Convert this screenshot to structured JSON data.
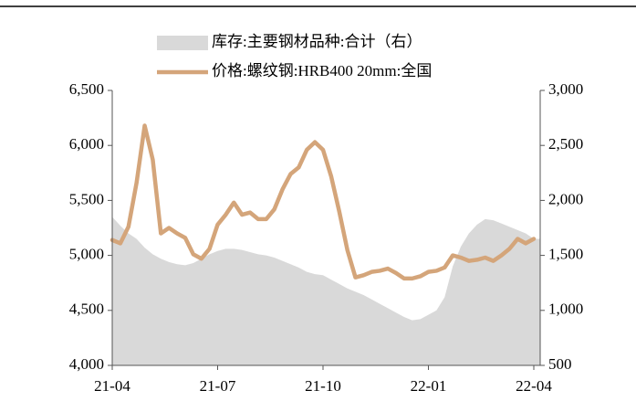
{
  "chart_data": {
    "type": "area_line",
    "categories": [
      "21-04",
      null,
      null,
      null,
      null,
      null,
      null,
      null,
      null,
      null,
      null,
      null,
      null,
      "21-07",
      null,
      null,
      null,
      null,
      null,
      null,
      null,
      null,
      null,
      null,
      null,
      null,
      "21-10",
      null,
      null,
      null,
      null,
      null,
      null,
      null,
      null,
      null,
      null,
      null,
      null,
      "22-01",
      null,
      null,
      null,
      null,
      null,
      null,
      null,
      null,
      null,
      null,
      null,
      null,
      "22-04"
    ],
    "series": [
      {
        "name": "库存:主要钢材品种:合计（右）",
        "color": "#d9d9d9",
        "kind": "area",
        "axis": "y2",
        "values": [
          1850,
          1770,
          1700,
          1650,
          1570,
          1510,
          1470,
          1440,
          1420,
          1410,
          1430,
          1470,
          1510,
          1540,
          1560,
          1560,
          1550,
          1530,
          1510,
          1500,
          1480,
          1450,
          1420,
          1390,
          1350,
          1330,
          1320,
          1280,
          1240,
          1200,
          1170,
          1140,
          1100,
          1060,
          1020,
          980,
          940,
          910,
          920,
          960,
          1000,
          1120,
          1400,
          1580,
          1700,
          1780,
          1830,
          1820,
          1790,
          1760,
          1730,
          1700,
          1650
        ]
      },
      {
        "name": "价格:螺纹钢:HRB400 20mm:全国",
        "color": "#d4a57a",
        "kind": "line",
        "values": [
          5140,
          5110,
          5260,
          5660,
          6180,
          5870,
          5200,
          5250,
          5200,
          5160,
          5010,
          4970,
          5060,
          5280,
          5370,
          5480,
          5370,
          5390,
          5330,
          5330,
          5420,
          5600,
          5740,
          5800,
          5960,
          6030,
          5960,
          5720,
          5400,
          5050,
          4800,
          4820,
          4850,
          4860,
          4880,
          4840,
          4790,
          4790,
          4810,
          4850,
          4860,
          4890,
          5000,
          4980,
          4950,
          4960,
          4980,
          4950,
          5000,
          5060,
          5150,
          5110,
          5150
        ]
      }
    ],
    "ylim": [
      4000,
      6500
    ],
    "yticks": [
      {
        "value": 4000,
        "label": "4,000"
      },
      {
        "value": 4500,
        "label": "4,500"
      },
      {
        "value": 5000,
        "label": "5,000"
      },
      {
        "value": 5500,
        "label": "5,500"
      },
      {
        "value": 6000,
        "label": "6,000"
      },
      {
        "value": 6500,
        "label": "6,500"
      }
    ],
    "y2lim": [
      500,
      3000
    ],
    "y2ticks": [
      500,
      {
        "value": 1000,
        "label": "1,000"
      },
      {
        "value": 1500,
        "label": "1,500"
      },
      {
        "value": 2000,
        "label": "2,000"
      },
      {
        "value": 2500,
        "label": "2,500"
      },
      {
        "value": 3000,
        "label": "3,000"
      }
    ],
    "legend": "top"
  }
}
